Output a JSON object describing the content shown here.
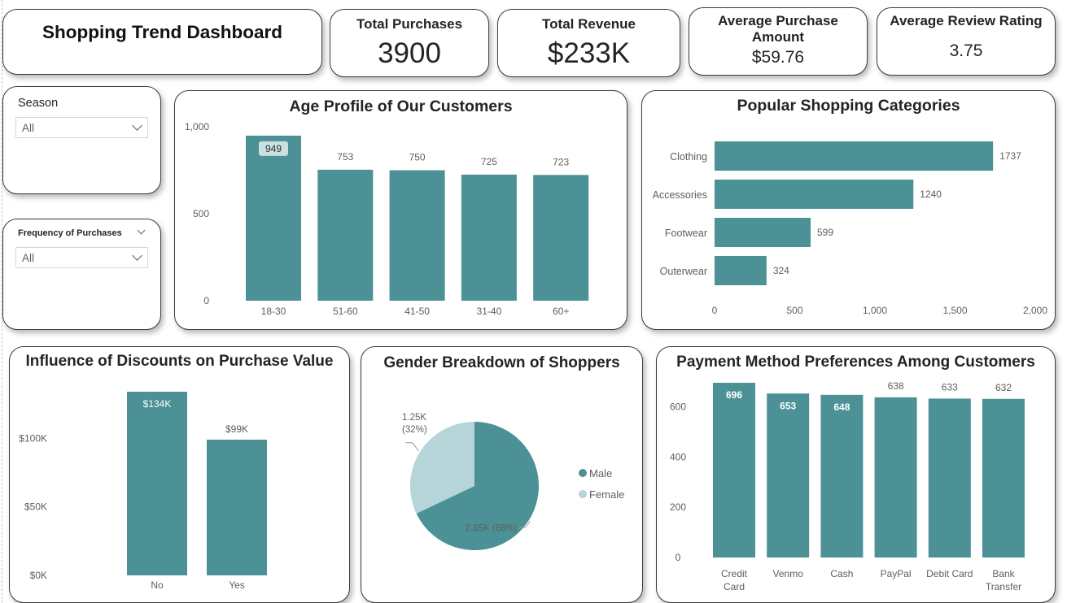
{
  "dashboard_title": "Shopping Trend Dashboard",
  "kpis": [
    {
      "title": "Total Purchases",
      "value": "3900"
    },
    {
      "title": "Total Revenue",
      "value": "$233K"
    },
    {
      "title": "Average Purchase Amount",
      "value": "$59.76"
    },
    {
      "title": "Average Review Rating",
      "value": "3.75"
    }
  ],
  "slicers": [
    {
      "label": "Season",
      "value": "All"
    },
    {
      "label": "Frequency of Purchases",
      "value": "All"
    }
  ],
  "colors": {
    "teal": "#4b9196",
    "light_teal": "#b5d5d8",
    "axis_text": "#605e5c"
  },
  "chart_data": [
    {
      "type": "bar",
      "title": "Age Profile of Our Customers",
      "categories": [
        "18-30",
        "51-60",
        "41-50",
        "31-40",
        "60+"
      ],
      "values": [
        949,
        753,
        750,
        725,
        723
      ],
      "data_labels": [
        "949",
        "753",
        "750",
        "725",
        "723"
      ],
      "yticks": [
        "0",
        "500",
        "1,000"
      ],
      "ylim": [
        0,
        1000
      ],
      "grid": false
    },
    {
      "type": "bar",
      "orientation": "horizontal",
      "title": "Popular Shopping Categories",
      "categories": [
        "Clothing",
        "Accessories",
        "Footwear",
        "Outerwear"
      ],
      "values": [
        1737,
        1240,
        599,
        324
      ],
      "data_labels": [
        "1737",
        "1240",
        "599",
        "324"
      ],
      "xticks": [
        "0",
        "500",
        "1,000",
        "1,500",
        "2,000"
      ],
      "xlim": [
        0,
        2000
      ],
      "grid": false
    },
    {
      "type": "bar",
      "title": "Influence of Discounts on Purchase Value",
      "categories": [
        "No",
        "Yes"
      ],
      "values": [
        134000,
        99000
      ],
      "data_labels": [
        "$134K",
        "$99K"
      ],
      "yticks": [
        "$0K",
        "$50K",
        "$100K"
      ],
      "ylim": [
        0,
        134000
      ],
      "grid": false
    },
    {
      "type": "pie",
      "title": "Gender Breakdown of Shoppers",
      "labels": [
        "Male",
        "Female"
      ],
      "values": [
        2650,
        1250
      ],
      "percents": [
        68,
        32
      ],
      "data_labels": [
        "2.65K (68%)",
        "1.25K\n(32%)"
      ],
      "legend": "right"
    },
    {
      "type": "bar",
      "title": "Payment Method Preferences Among Customers",
      "categories": [
        "Credit\nCard",
        "Venmo",
        "Cash",
        "PayPal",
        "Debit Card",
        "Bank\nTransfer"
      ],
      "values": [
        696,
        653,
        648,
        638,
        633,
        632
      ],
      "data_labels": [
        "696",
        "653",
        "648",
        "638",
        "633",
        "632"
      ],
      "yticks": [
        "0",
        "200",
        "400",
        "600"
      ],
      "ylim": [
        0,
        696
      ],
      "grid": false
    }
  ]
}
